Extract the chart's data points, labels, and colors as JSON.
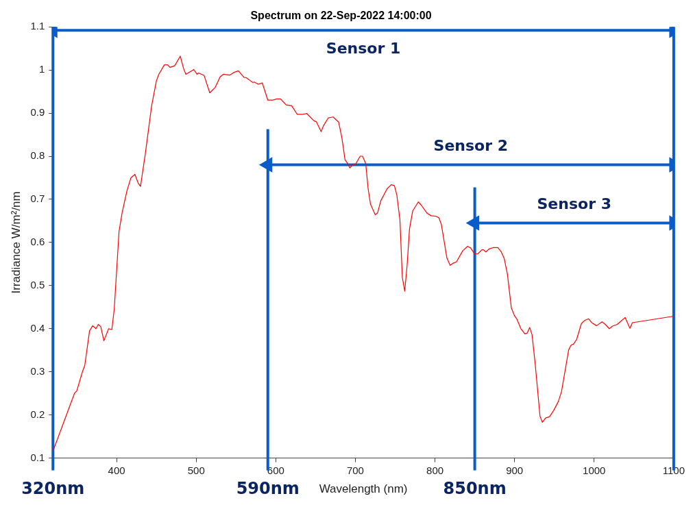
{
  "chart_data": {
    "type": "line",
    "title": "Spectrum on 22-Sep-2022 14:00:00",
    "xlabel": "Wavelength (nm)",
    "ylabel": "Irradiance W/m²/nm",
    "xlim": [
      320,
      1100
    ],
    "xticks": [
      400,
      500,
      600,
      700,
      800,
      900,
      1000,
      1100
    ],
    "ylim": [
      0.1,
      1.1
    ],
    "yticks": [
      0.1,
      0.2,
      0.3,
      0.4,
      0.5,
      0.6,
      0.7,
      0.8,
      0.9,
      1,
      1.1
    ],
    "marker": "none",
    "line_style": "solid",
    "legend": false,
    "series": [
      {
        "color": "#ff0000",
        "x": [
          320,
          347,
          350,
          357,
          360,
          366,
          370,
          374,
          377,
          380,
          384,
          390,
          394,
          397,
          403,
          407,
          413,
          418,
          423,
          427,
          430,
          436,
          444,
          450,
          453,
          460,
          464,
          467,
          473,
          480,
          484,
          487,
          497,
          501,
          503,
          510,
          517,
          524,
          530,
          534,
          542,
          547,
          553,
          560,
          563,
          571,
          573,
          578,
          583,
          590,
          596,
          601,
          606,
          613,
          620,
          627,
          633,
          639,
          648,
          651,
          657,
          660,
          666,
          672,
          679,
          683,
          687,
          690,
          693,
          697,
          700,
          706,
          709,
          713,
          716,
          719,
          725,
          728,
          732,
          740,
          745,
          749,
          752,
          756,
          759,
          762,
          765,
          768,
          772,
          779,
          783,
          790,
          795,
          801,
          805,
          808,
          815,
          819,
          823,
          827,
          835,
          841,
          845,
          850,
          854,
          859,
          861,
          864,
          868,
          873,
          879,
          883,
          887,
          891,
          896,
          900,
          903,
          908,
          913,
          916,
          919,
          922,
          926,
          932,
          935,
          939,
          944,
          949,
          955,
          959,
          968,
          971,
          974,
          978,
          984,
          988,
          993,
          997,
          1003,
          1010,
          1014,
          1019,
          1023,
          1029,
          1034,
          1039,
          1045,
          1048,
          1100
        ],
        "values": [
          0.116,
          0.25,
          0.256,
          0.3,
          0.315,
          0.395,
          0.407,
          0.4,
          0.41,
          0.405,
          0.372,
          0.4,
          0.398,
          0.445,
          0.625,
          0.67,
          0.72,
          0.75,
          0.758,
          0.738,
          0.73,
          0.805,
          0.917,
          0.975,
          0.99,
          1.012,
          1.012,
          1.006,
          1.01,
          1.032,
          1.004,
          0.99,
          1.001,
          0.99,
          0.993,
          0.987,
          0.947,
          0.96,
          0.984,
          0.99,
          0.988,
          0.994,
          0.998,
          0.983,
          0.982,
          0.971,
          0.972,
          0.967,
          0.97,
          0.93,
          0.93,
          0.933,
          0.933,
          0.919,
          0.917,
          0.897,
          0.897,
          0.899,
          0.882,
          0.88,
          0.857,
          0.871,
          0.889,
          0.891,
          0.879,
          0.843,
          0.792,
          0.784,
          0.773,
          0.781,
          0.781,
          0.8,
          0.8,
          0.783,
          0.725,
          0.689,
          0.664,
          0.669,
          0.697,
          0.725,
          0.734,
          0.732,
          0.711,
          0.652,
          0.519,
          0.487,
          0.547,
          0.631,
          0.673,
          0.694,
          0.686,
          0.668,
          0.662,
          0.661,
          0.657,
          0.642,
          0.564,
          0.547,
          0.552,
          0.555,
          0.581,
          0.591,
          0.587,
          0.573,
          0.574,
          0.583,
          0.583,
          0.578,
          0.585,
          0.588,
          0.588,
          0.579,
          0.563,
          0.527,
          0.448,
          0.43,
          0.422,
          0.4,
          0.388,
          0.39,
          0.403,
          0.386,
          0.317,
          0.197,
          0.183,
          0.193,
          0.196,
          0.21,
          0.231,
          0.254,
          0.351,
          0.362,
          0.364,
          0.375,
          0.412,
          0.419,
          0.423,
          0.414,
          0.407,
          0.416,
          0.41,
          0.4,
          0.406,
          0.41,
          0.418,
          0.426,
          0.401,
          0.414,
          0.429
        ]
      },
      {
        "type": "line",
        "name": "Sensor 1",
        "color": "#0a5cc8",
        "marker": "triangle",
        "x": [
          320,
          1100
        ],
        "values": [
          1.092,
          1.092
        ]
      },
      {
        "type": "line",
        "name": "Sensor 2",
        "color": "#0a5cc8",
        "marker": "triangle",
        "x": [
          590,
          1100
        ],
        "values": [
          0.78,
          0.78
        ]
      },
      {
        "type": "line",
        "name": "Sensor 3",
        "color": "#0a5cc8",
        "marker": "triangle",
        "x": [
          850,
          1100
        ],
        "values": [
          0.645,
          0.645
        ]
      }
    ],
    "ref_lines": [
      {
        "axis": "x",
        "value": 320,
        "label": "320nm",
        "color": "#0a5cc8"
      },
      {
        "axis": "x",
        "value": 590,
        "label": "590nm",
        "color": "#0a5cc8"
      },
      {
        "axis": "x",
        "value": 850,
        "label": "850nm",
        "color": "#0a5cc8"
      },
      {
        "axis": "x",
        "value": 1100,
        "label": null,
        "color": "#0a5cc8"
      }
    ]
  }
}
